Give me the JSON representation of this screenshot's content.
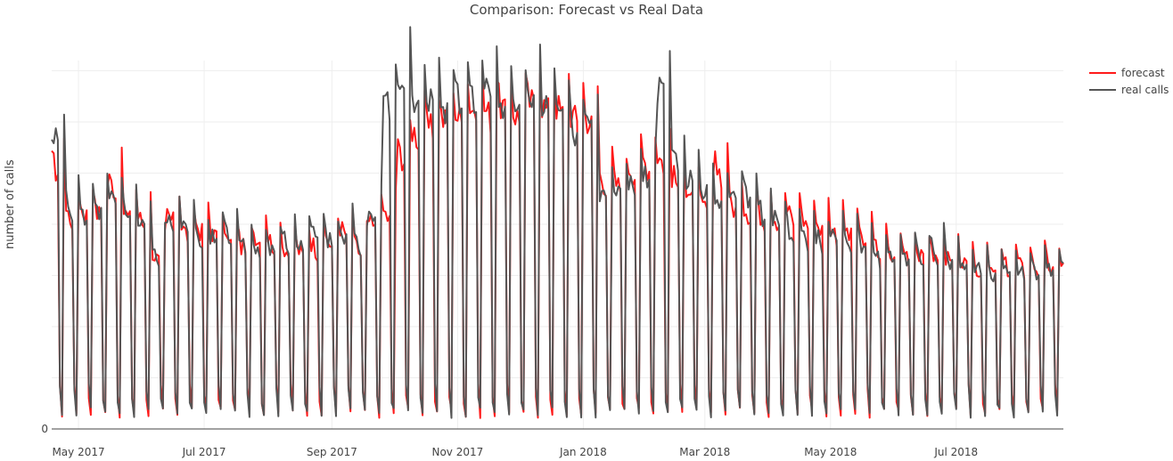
{
  "chart_data": {
    "type": "line",
    "title": "Comparison: Forecast vs Real Data",
    "xlabel": "",
    "ylabel": "number of calls",
    "x_start": "2017-04-18",
    "x_end": "2018-08-22",
    "y_tick_labels": [
      "0"
    ],
    "x_tick_labels": [
      "May 2017",
      "Jul 2017",
      "Sep 2017",
      "Nov 2017",
      "Jan 2018",
      "Mar 2018",
      "May 2018",
      "Jul 2018"
    ],
    "x_tick_dates": [
      "2017-05-01",
      "2017-07-01",
      "2017-09-01",
      "2017-11-01",
      "2018-01-01",
      "2018-03-01",
      "2018-05-01",
      "2018-07-01"
    ],
    "legend_position": "top-right",
    "grid": true,
    "series": [
      {
        "name": "forecast",
        "color": "#ff1a1a",
        "x_dates_start": "2017-04-18",
        "weekly_weekday_level": [
          1050,
          860,
          880,
          870,
          980,
          860,
          840,
          700,
          850,
          800,
          810,
          790,
          760,
          740,
          780,
          760,
          730,
          720,
          740,
          760,
          800,
          730,
          820,
          860,
          1100,
          1180,
          1200,
          1230,
          1240,
          1280,
          1260,
          1290,
          1250,
          1300,
          1280,
          1270,
          1240,
          1230,
          1000,
          980,
          1040,
          1060,
          1080,
          1000,
          960,
          880,
          1040,
          900,
          880,
          860,
          850,
          860,
          840,
          820,
          800,
          790,
          760,
          730,
          700,
          720,
          700,
          700,
          680,
          670,
          650,
          640,
          660
        ]
      },
      {
        "name": "real calls",
        "color": "#555555",
        "x_dates_start": "2017-04-18",
        "weekly_weekday_level": [
          1150,
          900,
          860,
          890,
          920,
          860,
          830,
          720,
          820,
          810,
          770,
          770,
          790,
          740,
          720,
          730,
          760,
          750,
          780,
          760,
          790,
          740,
          880,
          1300,
          1400,
          1290,
          1310,
          1280,
          1300,
          1330,
          1340,
          1310,
          1300,
          1350,
          1280,
          1250,
          1190,
          1200,
          920,
          960,
          990,
          1020,
          1340,
          1060,
          990,
          960,
          930,
          950,
          930,
          870,
          830,
          800,
          780,
          760,
          790,
          760,
          730,
          700,
          680,
          690,
          700,
          720,
          690,
          660,
          650,
          640,
          640
        ]
      }
    ]
  }
}
